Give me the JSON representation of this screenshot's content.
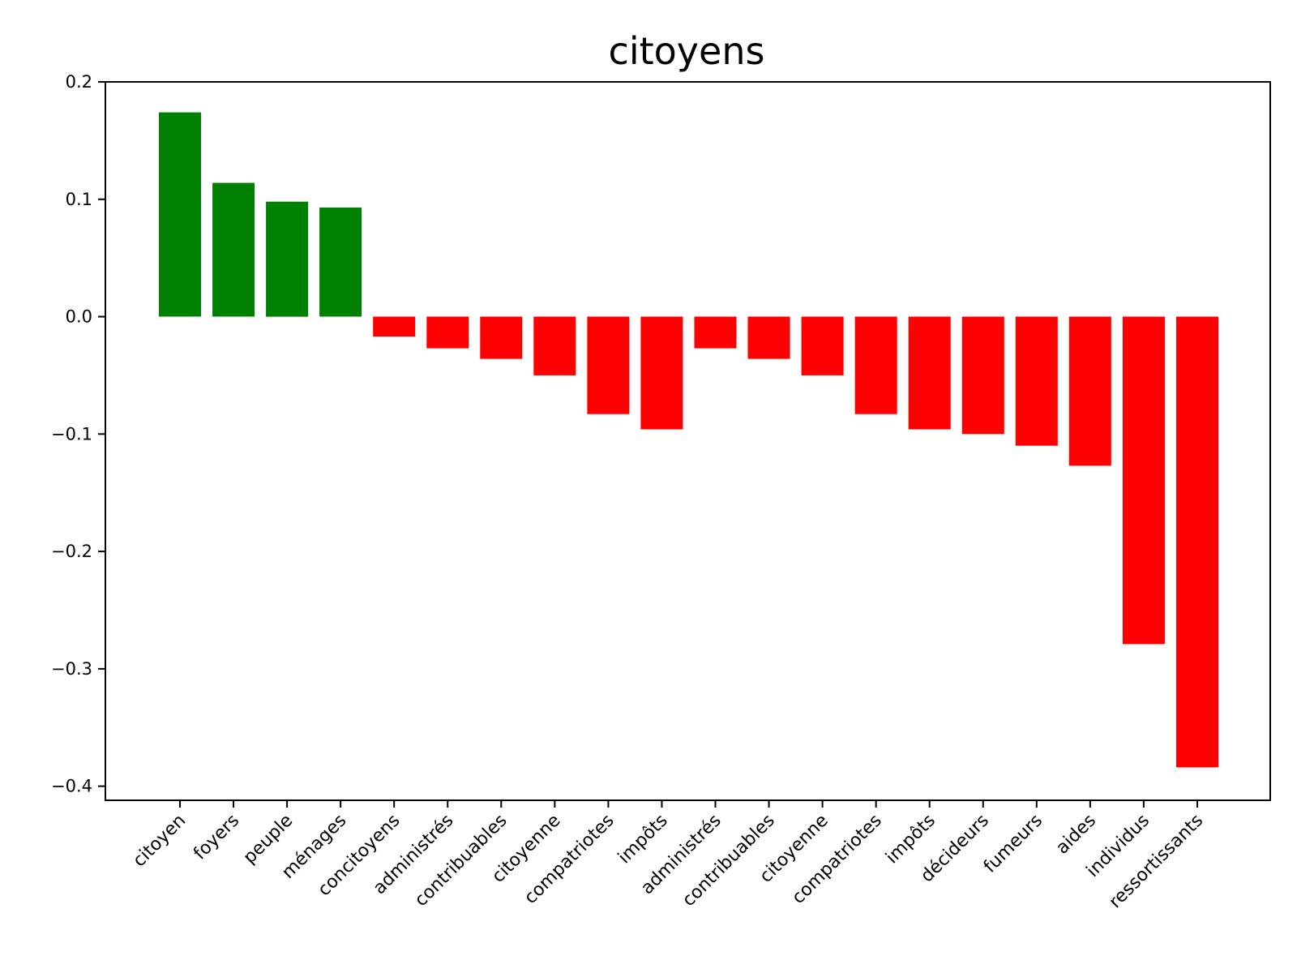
{
  "chart_data": {
    "type": "bar",
    "title": "citoyens",
    "xlabel": "",
    "ylabel": "",
    "ylim": [
      -0.412,
      0.2
    ],
    "yticks": [
      0.2,
      0.1,
      0.0,
      -0.1,
      -0.2,
      -0.3,
      -0.4
    ],
    "ytick_labels": [
      "0.2",
      "0.1",
      "0.0",
      "−0.1",
      "−0.2",
      "−0.3",
      "−0.4"
    ],
    "grid": false,
    "legend": "none",
    "colors": {
      "positive": "#008000",
      "negative": "#ff0000"
    },
    "categories": [
      "citoyen",
      "foyers",
      "peuple",
      "ménages",
      "concitoyens",
      "administrés",
      "contribuables",
      "citoyenne",
      "compatriotes",
      "impôts",
      "administrés",
      "contribuables",
      "citoyenne",
      "compatriotes",
      "impôts",
      "décideurs",
      "fumeurs",
      "aides",
      "individus",
      "ressortissants"
    ],
    "values": [
      0.174,
      0.114,
      0.098,
      0.093,
      -0.017,
      -0.027,
      -0.036,
      -0.05,
      -0.083,
      -0.096,
      -0.027,
      -0.036,
      -0.05,
      -0.083,
      -0.096,
      -0.1,
      -0.11,
      -0.127,
      -0.279,
      -0.384
    ]
  }
}
